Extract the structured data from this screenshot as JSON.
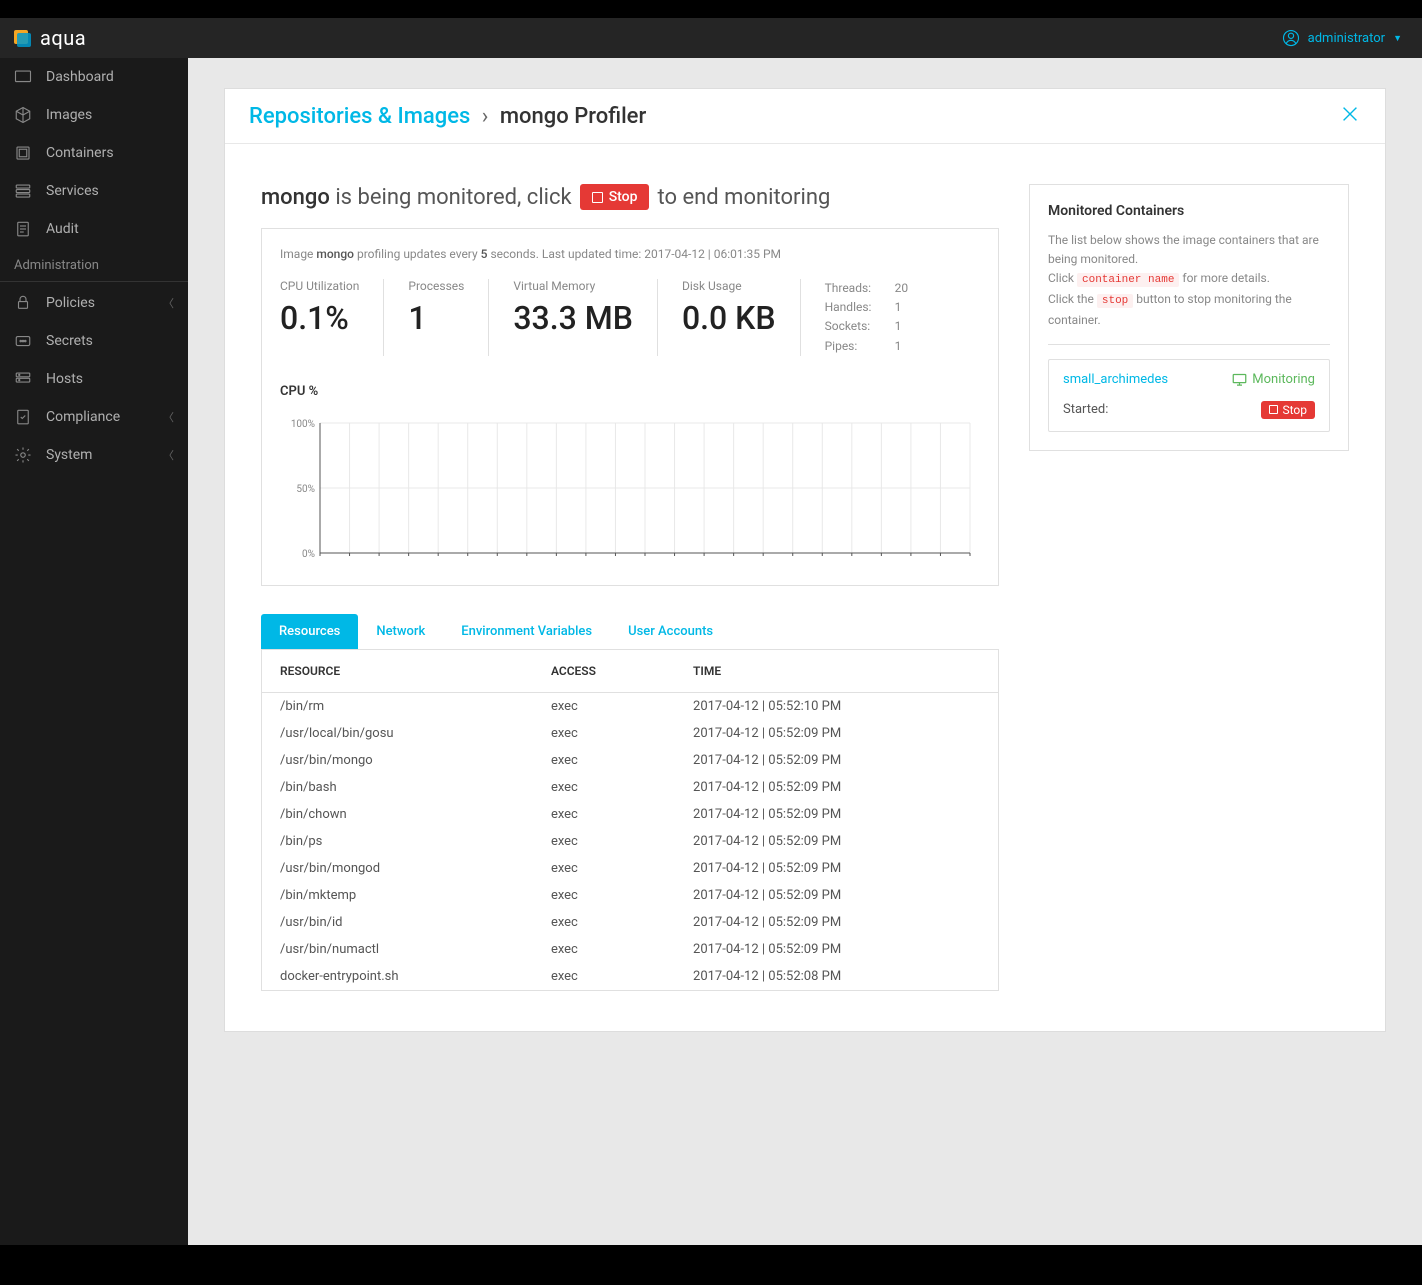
{
  "brand": "aqua",
  "user": {
    "name": "administrator"
  },
  "sidebar": {
    "main": [
      {
        "label": "Dashboard",
        "name": "sidebar-item-dashboard"
      },
      {
        "label": "Images",
        "name": "sidebar-item-images"
      },
      {
        "label": "Containers",
        "name": "sidebar-item-containers"
      },
      {
        "label": "Services",
        "name": "sidebar-item-services"
      },
      {
        "label": "Audit",
        "name": "sidebar-item-audit"
      }
    ],
    "section_label": "Administration",
    "admin": [
      {
        "label": "Policies",
        "name": "sidebar-item-policies",
        "expandable": true
      },
      {
        "label": "Secrets",
        "name": "sidebar-item-secrets",
        "expandable": false
      },
      {
        "label": "Hosts",
        "name": "sidebar-item-hosts",
        "expandable": false
      },
      {
        "label": "Compliance",
        "name": "sidebar-item-compliance",
        "expandable": true
      },
      {
        "label": "System",
        "name": "sidebar-item-system",
        "expandable": true
      }
    ]
  },
  "breadcrumb": {
    "root": "Repositories & Images",
    "sep": "›",
    "current": "mongo Profiler"
  },
  "status": {
    "image": "mongo",
    "text_1": "is being monitored, click",
    "stop": "Stop",
    "text_2": "to end monitoring"
  },
  "update": {
    "prefix": "Image",
    "image": "mongo",
    "mid": "profiling updates every",
    "seconds": "5",
    "suffix": "seconds. Last updated time: 2017-04-12 | 06:01:35 PM"
  },
  "stats": [
    {
      "label": "CPU Utilization",
      "value": "0.1%"
    },
    {
      "label": "Processes",
      "value": "1"
    },
    {
      "label": "Virtual Memory",
      "value": "33.3 MB"
    },
    {
      "label": "Disk Usage",
      "value": "0.0 KB"
    }
  ],
  "mini_stats": [
    {
      "label": "Threads:",
      "value": "20"
    },
    {
      "label": "Handles:",
      "value": "1"
    },
    {
      "label": "Sockets:",
      "value": "1"
    },
    {
      "label": "Pipes:",
      "value": "1"
    }
  ],
  "chart": {
    "title": "CPU %",
    "type": "line",
    "ylim": [
      0,
      100
    ],
    "ytick_step": 50,
    "yticks": [
      "100%",
      "50%",
      "0%"
    ],
    "xtick_count": 22,
    "grid_color": "#e8e8e8",
    "axis_color": "#555",
    "label_color": "#888",
    "label_fontsize": 10,
    "background_color": "#ffffff",
    "series": []
  },
  "tabs": [
    {
      "label": "Resources",
      "active": true
    },
    {
      "label": "Network",
      "active": false
    },
    {
      "label": "Environment Variables",
      "active": false
    },
    {
      "label": "User Accounts",
      "active": false
    }
  ],
  "table": {
    "columns": [
      "RESOURCE",
      "ACCESS",
      "TIME"
    ],
    "rows": [
      [
        "/bin/rm",
        "exec",
        "2017-04-12 | 05:52:10 PM"
      ],
      [
        "/usr/local/bin/gosu",
        "exec",
        "2017-04-12 | 05:52:09 PM"
      ],
      [
        "/usr/bin/mongo",
        "exec",
        "2017-04-12 | 05:52:09 PM"
      ],
      [
        "/bin/bash",
        "exec",
        "2017-04-12 | 05:52:09 PM"
      ],
      [
        "/bin/chown",
        "exec",
        "2017-04-12 | 05:52:09 PM"
      ],
      [
        "/bin/ps",
        "exec",
        "2017-04-12 | 05:52:09 PM"
      ],
      [
        "/usr/bin/mongod",
        "exec",
        "2017-04-12 | 05:52:09 PM"
      ],
      [
        "/bin/mktemp",
        "exec",
        "2017-04-12 | 05:52:09 PM"
      ],
      [
        "/usr/bin/id",
        "exec",
        "2017-04-12 | 05:52:09 PM"
      ],
      [
        "/usr/bin/numactl",
        "exec",
        "2017-04-12 | 05:52:09 PM"
      ],
      [
        "docker-entrypoint.sh",
        "exec",
        "2017-04-12 | 05:52:08 PM"
      ]
    ]
  },
  "side": {
    "title": "Monitored Containers",
    "desc_1": "The list below shows the image containers that are being monitored.",
    "desc_2a": "Click ",
    "desc_2b": " for more details.",
    "code_1": "container name",
    "desc_3a": "Click the ",
    "desc_3b": " button to stop monitoring the container.",
    "code_2": "stop",
    "container": {
      "name": "small_archimedes",
      "status": "Monitoring",
      "started_label": "Started:",
      "stop": "Stop"
    }
  },
  "colors": {
    "accent": "#00b8e6",
    "danger": "#e53935",
    "success": "#5cb85c",
    "sidebar_bg": "#1a1a1a",
    "header_bg": "#252525",
    "main_bg": "#e8e8e8",
    "panel_bg": "#ffffff",
    "border": "#e0e0e0",
    "text": "#333333",
    "text_muted": "#888888"
  }
}
